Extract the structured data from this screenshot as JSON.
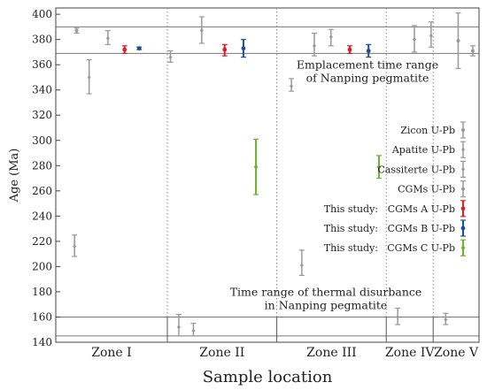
{
  "chart_data": {
    "type": "scatter",
    "xlabel": "Sample location",
    "ylabel": "Age (Ma)",
    "ylim": [
      140,
      405
    ],
    "yticks": [
      140,
      160,
      180,
      200,
      220,
      240,
      260,
      280,
      300,
      320,
      340,
      360,
      380,
      400
    ],
    "zones": [
      {
        "name": "Zone I",
        "start": 0,
        "end": 5.35
      },
      {
        "name": "Zone II",
        "start": 5.35,
        "end": 10.6
      },
      {
        "name": "Zone III",
        "start": 10.6,
        "end": 15.85
      },
      {
        "name": "Zone IV",
        "start": 15.85,
        "end": 18.1
      },
      {
        "name": "Zone V",
        "start": 18.1,
        "end": 20.3
      }
    ],
    "hlines": [
      390,
      369,
      160,
      145
    ],
    "annotations": [
      {
        "lines": [
          "Emplacement time range",
          "of Nanping pegmatite"
        ]
      },
      {
        "lines": [
          "Time range of thermal disurbance",
          "in Nanping pegmatite"
        ]
      }
    ],
    "series": [
      {
        "name": "Zicon U-Pb",
        "color": "#999999",
        "marker": "circle",
        "points": [
          {
            "x": 1.0,
            "y": 387,
            "lo": 385,
            "hi": 389
          }
        ]
      },
      {
        "name": "Apatite U-Pb",
        "color": "#999999",
        "marker": "diamond",
        "points": [
          {
            "x": 0.9,
            "y": 216,
            "lo": 208,
            "hi": 225
          },
          {
            "x": 5.9,
            "y": 152,
            "lo": 145,
            "hi": 162
          },
          {
            "x": 11.8,
            "y": 201,
            "lo": 193,
            "hi": 213
          }
        ]
      },
      {
        "name": "Cassiterte U-Pb",
        "color": "#999999",
        "marker": "diamond",
        "points": [
          {
            "x": 1.6,
            "y": 350,
            "lo": 337,
            "hi": 364
          },
          {
            "x": 2.5,
            "y": 381,
            "lo": 376,
            "hi": 387
          },
          {
            "x": 5.5,
            "y": 366,
            "lo": 362,
            "hi": 371
          },
          {
            "x": 6.6,
            "y": 149,
            "lo": 145,
            "hi": 155
          },
          {
            "x": 7.0,
            "y": 387,
            "lo": 377,
            "hi": 398
          },
          {
            "x": 11.3,
            "y": 343,
            "lo": 339,
            "hi": 349
          },
          {
            "x": 12.4,
            "y": 375,
            "lo": 367,
            "hi": 385
          },
          {
            "x": 13.2,
            "y": 382,
            "lo": 375,
            "hi": 388
          },
          {
            "x": 16.4,
            "y": 160,
            "lo": 154,
            "hi": 167
          },
          {
            "x": 17.2,
            "y": 380,
            "lo": 370,
            "hi": 391
          },
          {
            "x": 18.0,
            "y": 383,
            "lo": 374,
            "hi": 394
          },
          {
            "x": 18.7,
            "y": 158,
            "lo": 154,
            "hi": 163
          }
        ]
      },
      {
        "name": "CGMs U-Pb",
        "color": "#999999",
        "marker": "circle",
        "points": [
          {
            "x": 19.3,
            "y": 379,
            "lo": 357,
            "hi": 401
          },
          {
            "x": 20.0,
            "y": 371,
            "lo": 367,
            "hi": 375
          }
        ]
      },
      {
        "name": "This study: CGMs A U-Pb",
        "color": "#d81f2a",
        "marker": "circle",
        "points": [
          {
            "x": 3.3,
            "y": 372,
            "lo": 369,
            "hi": 375
          },
          {
            "x": 8.1,
            "y": 372,
            "lo": 367,
            "hi": 376
          },
          {
            "x": 14.1,
            "y": 372,
            "lo": 369,
            "hi": 375
          }
        ]
      },
      {
        "name": "This study: CGMs B U-Pb",
        "color": "#1a4f9c",
        "marker": "circle",
        "points": [
          {
            "x": 4.0,
            "y": 373,
            "lo": 372,
            "hi": 374
          },
          {
            "x": 9.0,
            "y": 373,
            "lo": 366,
            "hi": 380
          },
          {
            "x": 15.0,
            "y": 371,
            "lo": 366,
            "hi": 376
          }
        ]
      },
      {
        "name": "This study: CGMs C U-Pb",
        "color": "#6ab42d",
        "marker": "diamond",
        "points": [
          {
            "x": 9.6,
            "y": 279,
            "lo": 257,
            "hi": 301
          },
          {
            "x": 15.5,
            "y": 279,
            "lo": 270,
            "hi": 288
          }
        ]
      }
    ],
    "legend": [
      {
        "prefix": "",
        "label": "Zicon U-Pb",
        "color": "#999999",
        "marker": "circle"
      },
      {
        "prefix": "",
        "label": "Apatite U-Pb",
        "color": "#999999",
        "marker": "diamond"
      },
      {
        "prefix": "",
        "label": "Cassiterte U-Pb",
        "color": "#999999",
        "marker": "diamond"
      },
      {
        "prefix": "",
        "label": "CGMs U-Pb",
        "color": "#999999",
        "marker": "circle"
      },
      {
        "prefix": "This study:",
        "label": "CGMs A U-Pb",
        "color": "#d81f2a",
        "marker": "circle"
      },
      {
        "prefix": "This study:",
        "label": "CGMs B U-Pb",
        "color": "#1a4f9c",
        "marker": "circle"
      },
      {
        "prefix": "This study:",
        "label": "CGMs C U-Pb",
        "color": "#6ab42d",
        "marker": "diamond"
      }
    ]
  }
}
